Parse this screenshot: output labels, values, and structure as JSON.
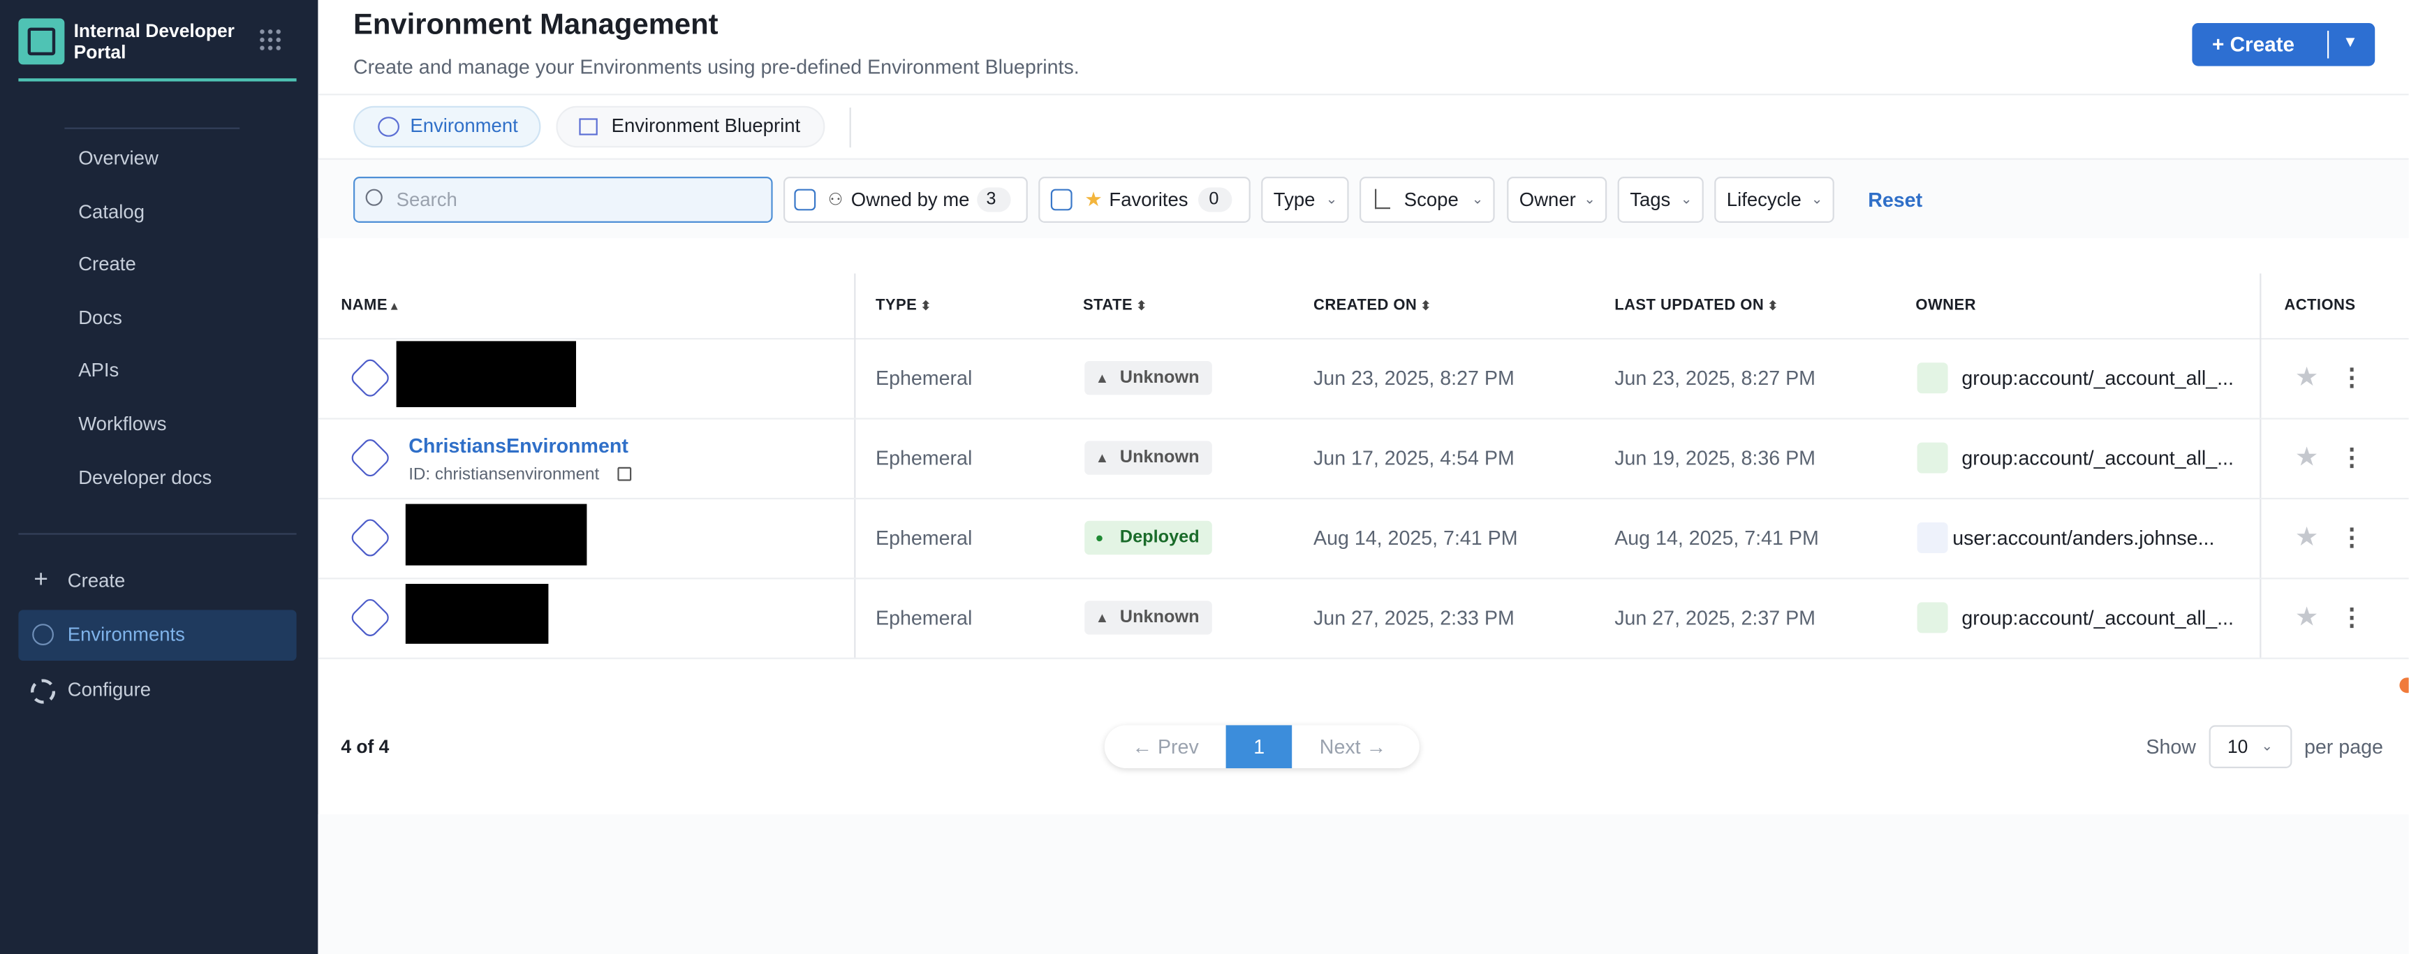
{
  "sidebar": {
    "brand": "Internal Developer Portal",
    "nav": [
      "Overview",
      "Catalog",
      "Create",
      "Docs",
      "APIs",
      "Workflows",
      "Developer docs"
    ],
    "secondary": [
      "Create",
      "Environments",
      "Configure"
    ]
  },
  "header": {
    "title": "Environment Management",
    "subtitle": "Create and manage your Environments using pre-defined Environment Blueprints.",
    "create_button": "Create"
  },
  "tabs": [
    "Environment",
    "Environment Blueprint"
  ],
  "filters": {
    "search_placeholder": "Search",
    "owned_by_me": {
      "label": "Owned by me",
      "count": 3
    },
    "favorites": {
      "label": "Favorites",
      "count": 0
    },
    "dropdowns": [
      "Type",
      "Scope",
      "Owner",
      "Tags",
      "Lifecycle"
    ],
    "reset": "Reset"
  },
  "table": {
    "columns": [
      "NAME",
      "TYPE",
      "STATE",
      "CREATED ON",
      "LAST UPDATED ON",
      "OWNER",
      "ACTIONS"
    ],
    "rows": [
      {
        "type": "Ephemeral",
        "state": "Unknown",
        "created": "Jun 23, 2025, 8:27 PM",
        "updated": "Jun 23, 2025, 8:27 PM",
        "owner": "group:account/_account_all_..."
      },
      {
        "name": "ChristiansEnvironment",
        "id": "ID: christiansenvironment",
        "type": "Ephemeral",
        "state": "Unknown",
        "created": "Jun 17, 2025, 4:54 PM",
        "updated": "Jun 19, 2025, 8:36 PM",
        "owner": "group:account/_account_all_..."
      },
      {
        "type": "Ephemeral",
        "state": "Deployed",
        "created": "Aug 14, 2025, 7:41 PM",
        "updated": "Aug 14, 2025, 7:41 PM",
        "owner": "user:account/anders.johnse..."
      },
      {
        "type": "Ephemeral",
        "state": "Unknown",
        "created": "Jun 27, 2025, 2:33 PM",
        "updated": "Jun 27, 2025, 2:37 PM",
        "owner": "group:account/_account_all_..."
      }
    ]
  },
  "pagination": {
    "summary": "4 of 4",
    "prev": "Prev",
    "page": 1,
    "next": "Next",
    "show": "Show",
    "per_page_value": 10,
    "per_page": "per page"
  }
}
